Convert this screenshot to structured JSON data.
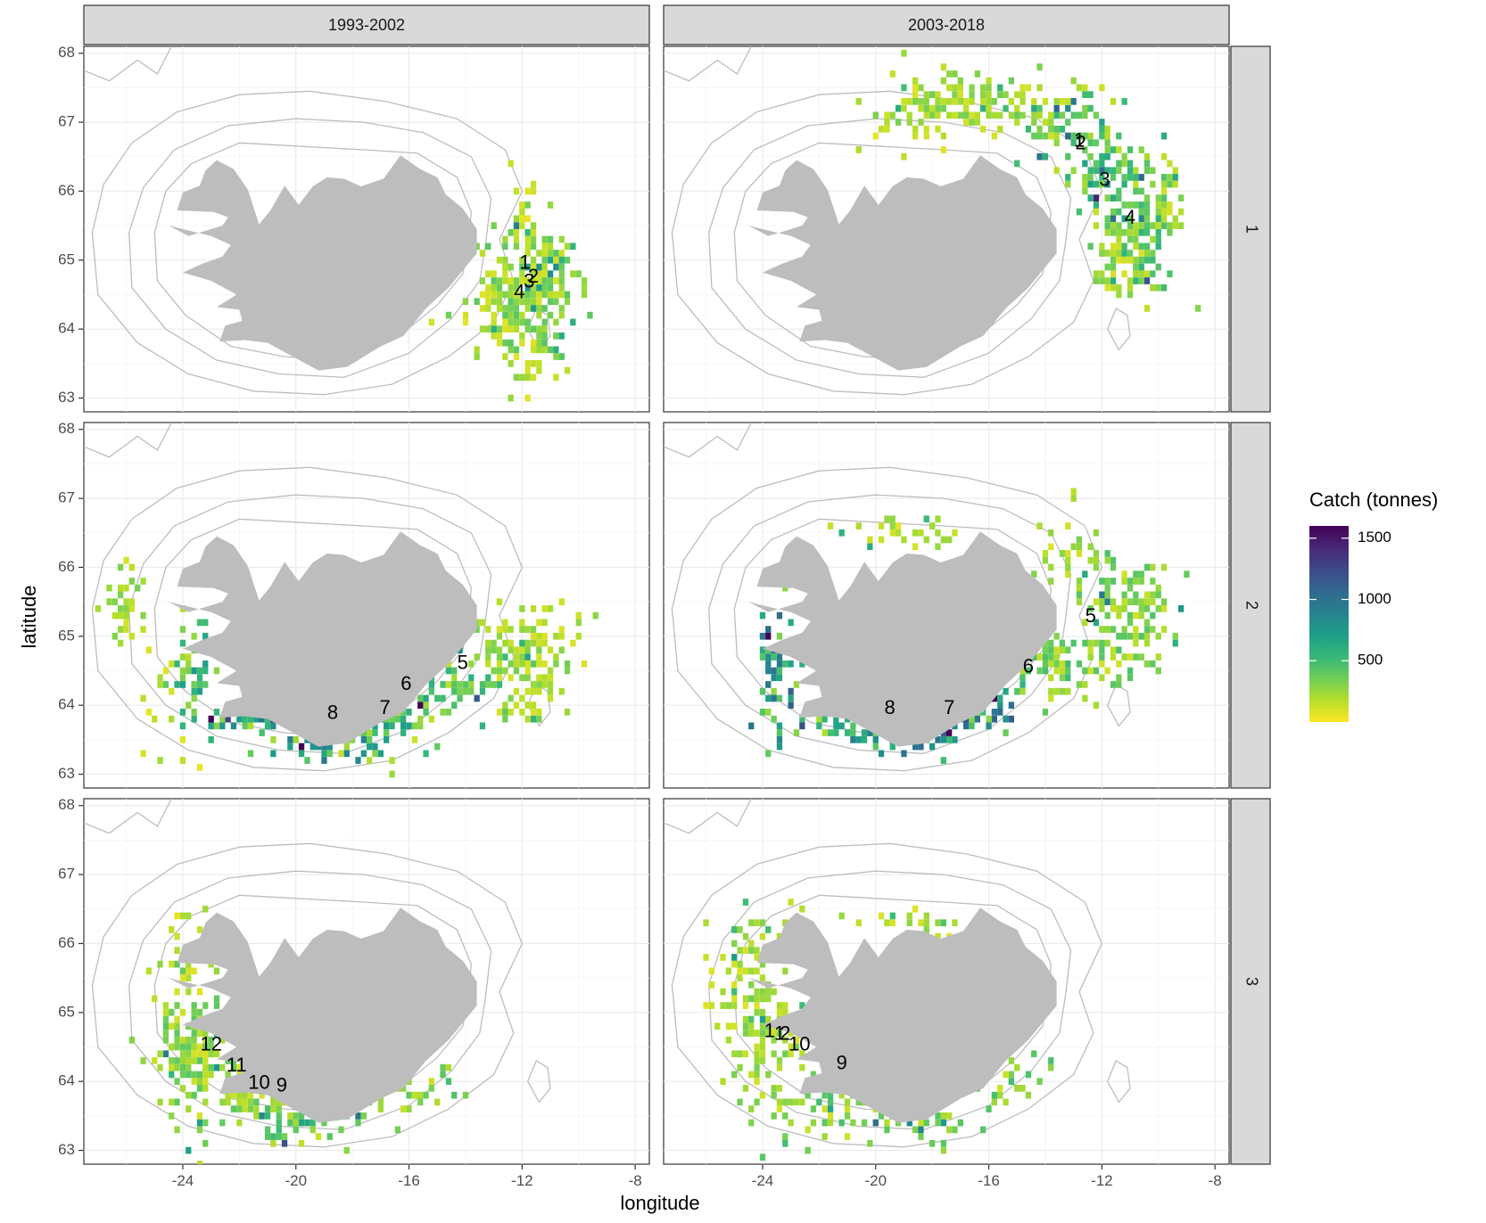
{
  "chart_data": {
    "type": "heatmap",
    "xlabel": "longitude",
    "ylabel": "latitude",
    "xlim": [
      -27.5,
      -7.5
    ],
    "ylim": [
      62.8,
      68.1
    ],
    "x_ticks": [
      -24,
      -20,
      -16,
      -12,
      -8
    ],
    "x_tick_labels": [
      "-24",
      "-20",
      "-16",
      "-12",
      "-8"
    ],
    "y_ticks": [
      63,
      64,
      65,
      66,
      67,
      68
    ],
    "y_tick_labels": [
      "63",
      "64",
      "65",
      "66",
      "67",
      "68"
    ],
    "grid": true,
    "col_strips": [
      "1993-2002",
      "2003-2018"
    ],
    "row_strips": [
      "1",
      "2",
      "3"
    ],
    "legend": {
      "title": "Catch (tonnes)",
      "position": "right",
      "min": 0,
      "max": 1600,
      "breaks": [
        500,
        1000,
        1500
      ],
      "break_labels": [
        "500",
        "1000",
        "1500"
      ],
      "colors": [
        "#fde725",
        "#b5de2b",
        "#6ece58",
        "#35b779",
        "#1f9e89",
        "#26828e",
        "#31688e",
        "#3e4989",
        "#482878",
        "#440154"
      ]
    },
    "land_color": "#bdbdbd",
    "contour_color": "#bdbdbd",
    "panels": [
      {
        "period": "1993-2002",
        "group": "1",
        "labels": [
          {
            "text": "1",
            "lon": -11.9,
            "lat": 64.95
          },
          {
            "text": "2",
            "lon": -11.6,
            "lat": 64.75
          },
          {
            "text": "3",
            "lon": -11.75,
            "lat": 64.68
          },
          {
            "text": "4",
            "lon": -12.1,
            "lat": 64.52
          }
        ],
        "clusters": [
          {
            "lon": -11.6,
            "lat": 64.6,
            "slon": 0.75,
            "slat": 0.5,
            "n": 240,
            "mean": 260
          },
          {
            "lon": -12.7,
            "lat": 64.2,
            "slon": 0.5,
            "slat": 0.3,
            "n": 45,
            "mean": 180
          },
          {
            "lon": -11.8,
            "lat": 65.7,
            "slon": 0.2,
            "slat": 0.45,
            "n": 20,
            "mean": 130
          },
          {
            "lon": -11.7,
            "lat": 63.55,
            "slon": 0.3,
            "slat": 0.25,
            "n": 20,
            "mean": 160
          },
          {
            "lon": -14.8,
            "lat": 64.35,
            "slon": 0.9,
            "slat": 0.15,
            "n": 14,
            "mean": 170
          }
        ]
      },
      {
        "period": "2003-2018",
        "group": "1",
        "labels": [
          {
            "text": "1",
            "lon": -12.8,
            "lat": 66.72
          },
          {
            "text": "2",
            "lon": -12.75,
            "lat": 66.68
          },
          {
            "text": "3",
            "lon": -11.9,
            "lat": 66.15
          },
          {
            "text": "4",
            "lon": -11.0,
            "lat": 65.6
          }
        ],
        "clusters": [
          {
            "lon": -17.0,
            "lat": 67.3,
            "slon": 1.3,
            "slat": 0.22,
            "n": 120,
            "mean": 220
          },
          {
            "lon": -13.8,
            "lat": 67.0,
            "slon": 0.9,
            "slat": 0.3,
            "n": 80,
            "mean": 330
          },
          {
            "lon": -12.0,
            "lat": 66.3,
            "slon": 0.55,
            "slat": 0.45,
            "n": 85,
            "mean": 420
          },
          {
            "lon": -10.5,
            "lat": 65.6,
            "slon": 0.55,
            "slat": 0.55,
            "n": 110,
            "mean": 380
          },
          {
            "lon": -11.3,
            "lat": 64.9,
            "slon": 0.5,
            "slat": 0.35,
            "n": 50,
            "mean": 230
          },
          {
            "lon": -9.6,
            "lat": 66.0,
            "slon": 0.3,
            "slat": 0.3,
            "n": 20,
            "mean": 200
          },
          {
            "lon": -18.5,
            "lat": 66.75,
            "slon": 1.0,
            "slat": 0.15,
            "n": 12,
            "mean": 120
          }
        ]
      },
      {
        "period": "1993-2002",
        "group": "2",
        "labels": [
          {
            "text": "5",
            "lon": -14.1,
            "lat": 64.6
          },
          {
            "text": "6",
            "lon": -16.1,
            "lat": 64.3
          },
          {
            "text": "7",
            "lon": -16.85,
            "lat": 63.95
          },
          {
            "text": "8",
            "lon": -18.7,
            "lat": 63.88
          }
        ],
        "clusters": [
          {
            "lon": -11.8,
            "lat": 64.7,
            "slon": 0.9,
            "slat": 0.4,
            "n": 160,
            "mean": 210
          },
          {
            "lon": -14.3,
            "lat": 64.3,
            "slon": 0.7,
            "slat": 0.2,
            "n": 50,
            "mean": 360
          },
          {
            "lon": -16.5,
            "lat": 63.9,
            "slon": 0.7,
            "slat": 0.17,
            "n": 55,
            "mean": 480
          },
          {
            "lon": -18.7,
            "lat": 63.48,
            "slon": 1.0,
            "slat": 0.12,
            "n": 55,
            "mean": 580
          },
          {
            "lon": -21.5,
            "lat": 63.8,
            "slon": 0.9,
            "slat": 0.12,
            "n": 45,
            "mean": 500
          },
          {
            "lon": -23.7,
            "lat": 64.5,
            "slon": 0.35,
            "slat": 0.4,
            "n": 45,
            "mean": 460
          },
          {
            "lon": -26.0,
            "lat": 65.5,
            "slon": 0.35,
            "slat": 0.3,
            "n": 35,
            "mean": 200
          },
          {
            "lon": -24.6,
            "lat": 64.1,
            "slon": 0.8,
            "slat": 0.4,
            "n": 18,
            "mean": 140
          },
          {
            "lon": -17.0,
            "lat": 63.65,
            "slon": 1.3,
            "slat": 0.3,
            "n": 22,
            "mean": 200
          }
        ]
      },
      {
        "period": "2003-2018",
        "group": "2",
        "labels": [
          {
            "text": "5",
            "lon": -12.4,
            "lat": 65.28
          },
          {
            "text": "6",
            "lon": -14.6,
            "lat": 64.55
          },
          {
            "text": "7",
            "lon": -17.4,
            "lat": 63.95
          },
          {
            "text": "8",
            "lon": -19.5,
            "lat": 63.95
          }
        ],
        "clusters": [
          {
            "lon": -11.2,
            "lat": 65.3,
            "slon": 0.8,
            "slat": 0.5,
            "n": 150,
            "mean": 280
          },
          {
            "lon": -13.5,
            "lat": 64.6,
            "slon": 0.8,
            "slat": 0.25,
            "n": 70,
            "mean": 320
          },
          {
            "lon": -16.5,
            "lat": 64.0,
            "slon": 0.7,
            "slat": 0.18,
            "n": 55,
            "mean": 780
          },
          {
            "lon": -18.8,
            "lat": 63.55,
            "slon": 1.0,
            "slat": 0.12,
            "n": 60,
            "mean": 640
          },
          {
            "lon": -21.5,
            "lat": 63.7,
            "slon": 0.8,
            "slat": 0.12,
            "n": 35,
            "mean": 420
          },
          {
            "lon": -23.6,
            "lat": 64.4,
            "slon": 0.35,
            "slat": 0.45,
            "n": 60,
            "mean": 700
          },
          {
            "lon": -19.0,
            "lat": 66.5,
            "slon": 1.4,
            "slat": 0.17,
            "n": 30,
            "mean": 170
          },
          {
            "lon": -13.0,
            "lat": 66.2,
            "slon": 0.7,
            "slat": 0.35,
            "n": 30,
            "mean": 200
          }
        ]
      },
      {
        "period": "1993-2002",
        "group": "3",
        "labels": [
          {
            "text": "12",
            "lon": -23.0,
            "lat": 64.52
          },
          {
            "text": "11",
            "lon": -22.1,
            "lat": 64.22
          },
          {
            "text": "10",
            "lon": -21.3,
            "lat": 63.97
          },
          {
            "text": "9",
            "lon": -20.5,
            "lat": 63.93
          }
        ],
        "clusters": [
          {
            "lon": -23.6,
            "lat": 64.5,
            "slon": 0.7,
            "slat": 0.55,
            "n": 170,
            "mean": 260
          },
          {
            "lon": -21.5,
            "lat": 63.8,
            "slon": 0.9,
            "slat": 0.22,
            "n": 70,
            "mean": 260
          },
          {
            "lon": -19.0,
            "lat": 63.5,
            "slon": 0.9,
            "slat": 0.15,
            "n": 50,
            "mean": 320
          },
          {
            "lon": -16.2,
            "lat": 63.9,
            "slon": 1.1,
            "slat": 0.2,
            "n": 38,
            "mean": 290
          },
          {
            "lon": -24.0,
            "lat": 65.8,
            "slon": 0.6,
            "slat": 0.45,
            "n": 25,
            "mean": 150
          },
          {
            "lon": -20.6,
            "lat": 63.25,
            "slon": 0.5,
            "slat": 0.12,
            "n": 15,
            "mean": 420
          }
        ]
      },
      {
        "period": "2003-2018",
        "group": "3",
        "labels": [
          {
            "text": "1",
            "lon": -23.75,
            "lat": 64.72
          },
          {
            "text": "1",
            "lon": -23.4,
            "lat": 64.68
          },
          {
            "text": "2",
            "lon": -23.2,
            "lat": 64.68
          },
          {
            "text": "10",
            "lon": -22.7,
            "lat": 64.52
          },
          {
            "text": "9",
            "lon": -21.2,
            "lat": 64.25
          }
        ],
        "clusters": [
          {
            "lon": -24.9,
            "lat": 65.6,
            "slon": 0.55,
            "slat": 0.45,
            "n": 75,
            "mean": 200
          },
          {
            "lon": -23.8,
            "lat": 64.5,
            "slon": 0.6,
            "slat": 0.55,
            "n": 110,
            "mean": 220
          },
          {
            "lon": -21.5,
            "lat": 63.7,
            "slon": 0.9,
            "slat": 0.2,
            "n": 55,
            "mean": 300
          },
          {
            "lon": -18.6,
            "lat": 63.42,
            "slon": 0.9,
            "slat": 0.12,
            "n": 40,
            "mean": 300
          },
          {
            "lon": -15.5,
            "lat": 64.0,
            "slon": 1.0,
            "slat": 0.2,
            "n": 35,
            "mean": 320
          },
          {
            "lon": -18.8,
            "lat": 66.3,
            "slon": 1.0,
            "slat": 0.1,
            "n": 18,
            "mean": 180
          },
          {
            "lon": -23.2,
            "lat": 66.05,
            "slon": 0.6,
            "slat": 0.25,
            "n": 16,
            "mean": 140
          }
        ]
      }
    ]
  }
}
